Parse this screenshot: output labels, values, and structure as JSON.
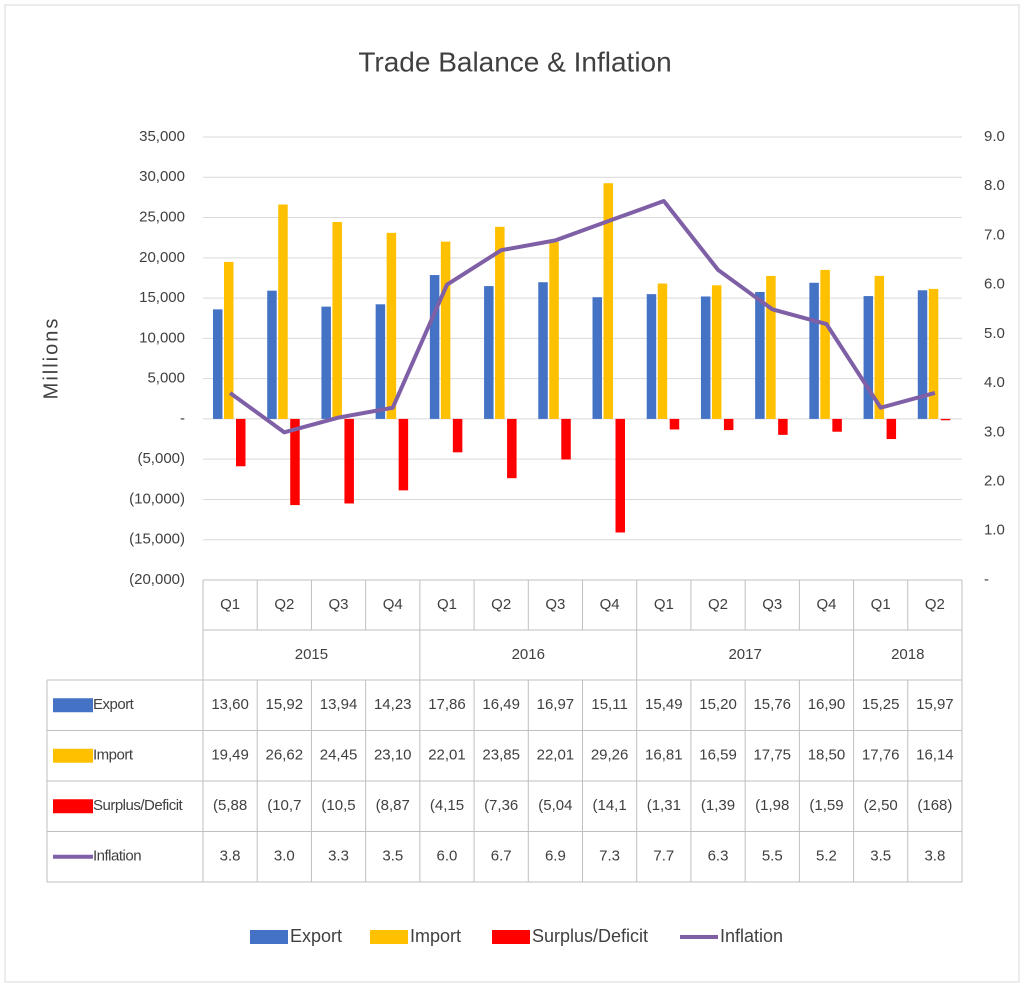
{
  "chart_data": {
    "type": "bar",
    "title": "Trade Balance & Inflation",
    "y_axis_label": "Millions",
    "categories": [
      "Q1",
      "Q2",
      "Q3",
      "Q4",
      "Q1",
      "Q2",
      "Q3",
      "Q4",
      "Q1",
      "Q2",
      "Q3",
      "Q4",
      "Q1",
      "Q2"
    ],
    "groups": [
      {
        "label": "2015",
        "size": 4
      },
      {
        "label": "2016",
        "size": 4
      },
      {
        "label": "2017",
        "size": 4
      },
      {
        "label": "2018",
        "size": 2
      }
    ],
    "ylim": [
      -20000,
      35000
    ],
    "yticks": [
      {
        "value": -20000,
        "label": "(20,000)"
      },
      {
        "value": -15000,
        "label": "(15,000)"
      },
      {
        "value": -10000,
        "label": "(10,000)"
      },
      {
        "value": -5000,
        "label": "(5,000)"
      },
      {
        "value": 0,
        "label": "-"
      },
      {
        "value": 5000,
        "label": "5,000"
      },
      {
        "value": 10000,
        "label": "10,000"
      },
      {
        "value": 15000,
        "label": "15,000"
      },
      {
        "value": 20000,
        "label": "20,000"
      },
      {
        "value": 25000,
        "label": "25,000"
      },
      {
        "value": 30000,
        "label": "30,000"
      },
      {
        "value": 35000,
        "label": "35,000"
      }
    ],
    "y2lim": [
      0,
      9
    ],
    "y2ticks": [
      {
        "value": 0,
        "label": "-"
      },
      {
        "value": 1,
        "label": "1.0"
      },
      {
        "value": 2,
        "label": "2.0"
      },
      {
        "value": 3,
        "label": "3.0"
      },
      {
        "value": 4,
        "label": "4.0"
      },
      {
        "value": 5,
        "label": "5.0"
      },
      {
        "value": 6,
        "label": "6.0"
      },
      {
        "value": 7,
        "label": "7.0"
      },
      {
        "value": 8,
        "label": "8.0"
      },
      {
        "value": 9,
        "label": "9.0"
      }
    ],
    "grid": true,
    "legend": "bottom",
    "series": [
      {
        "name": "Export",
        "color": "#4472c4",
        "values": [
          13600,
          15920,
          13940,
          14230,
          17860,
          16490,
          16970,
          15110,
          15490,
          15200,
          15760,
          16900,
          15250,
          15970
        ],
        "value_labels": [
          "13,60",
          "15,92",
          "13,94",
          "14,23",
          "17,86",
          "16,49",
          "16,97",
          "15,11",
          "15,49",
          "15,20",
          "15,76",
          "16,90",
          "15,25",
          "15,97"
        ]
      },
      {
        "name": "Import",
        "color": "#ffc000",
        "values": [
          19490,
          26620,
          24450,
          23100,
          22010,
          23850,
          22010,
          29260,
          16810,
          16590,
          17750,
          18500,
          17760,
          16140
        ],
        "value_labels": [
          "19,49",
          "26,62",
          "24,45",
          "23,10",
          "22,01",
          "23,85",
          "22,01",
          "29,26",
          "16,81",
          "16,59",
          "17,75",
          "18,50",
          "17,76",
          "16,14"
        ]
      },
      {
        "name": "Surplus/Deficit",
        "color": "#ff0000",
        "values": [
          -5880,
          -10700,
          -10500,
          -8870,
          -4150,
          -7360,
          -5040,
          -14100,
          -1310,
          -1390,
          -1980,
          -1590,
          -2500,
          -168
        ],
        "value_labels": [
          "(5,88",
          "(10,7",
          "(10,5",
          "(8,87",
          "(4,15",
          "(7,36",
          "(5,04",
          "(14,1",
          "(1,31",
          "(1,39",
          "(1,98",
          "(1,59",
          "(2,50",
          "(168)"
        ]
      },
      {
        "name": "Inflation",
        "color": "#7f5fa6",
        "type": "line",
        "axis": "y2",
        "values": [
          3.8,
          3.0,
          3.3,
          3.5,
          6.0,
          6.7,
          6.9,
          7.3,
          7.7,
          6.3,
          5.5,
          5.2,
          3.5,
          3.8
        ],
        "value_labels": [
          "3.8",
          "3.0",
          "3.3",
          "3.5",
          "6.0",
          "6.7",
          "6.9",
          "7.3",
          "7.7",
          "6.3",
          "5.5",
          "5.2",
          "3.5",
          "3.8"
        ]
      }
    ]
  }
}
